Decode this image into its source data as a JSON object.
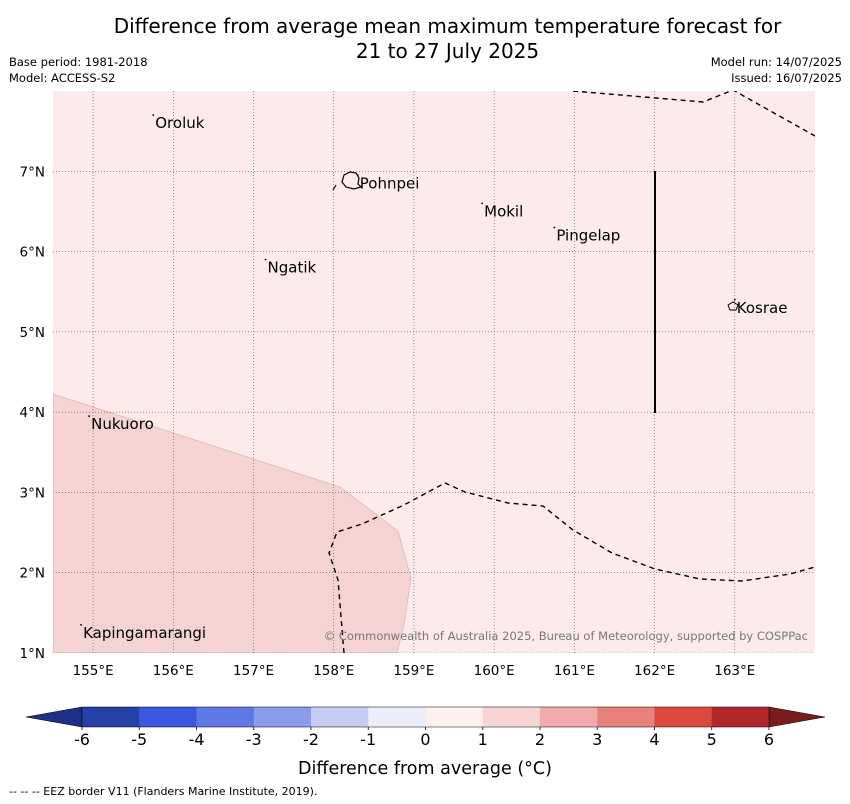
{
  "title": {
    "line1": "Difference from average mean maximum temperature forecast for",
    "line2": "21 to 27 July 2025"
  },
  "meta": {
    "base_period": "Base period: 1981-2018",
    "model": "Model: ACCESS-S2",
    "model_run": "Model run: 14/07/2025",
    "issued": "Issued: 16/07/2025"
  },
  "map": {
    "lon_range": [
      154.5,
      164.0
    ],
    "lat_range": [
      1.0,
      8.0
    ],
    "lon_ticks": [
      155,
      156,
      157,
      158,
      159,
      160,
      161,
      162,
      163
    ],
    "lon_labels": [
      "155°E",
      "156°E",
      "157°E",
      "158°E",
      "159°E",
      "160°E",
      "161°E",
      "162°E",
      "163°E"
    ],
    "lat_ticks": [
      1,
      2,
      3,
      4,
      5,
      6,
      7
    ],
    "lat_labels": [
      "1°N",
      "2°N",
      "3°N",
      "4°N",
      "5°N",
      "6°N",
      "7°N"
    ],
    "background_color": "#fcebea",
    "anomaly_region_color": "#f5d3d3",
    "places": [
      {
        "name": "Oroluk",
        "lon": 155.75,
        "lat": 7.6
      },
      {
        "name": "Pohnpei",
        "lon": 158.3,
        "lat": 6.85
      },
      {
        "name": "Mokil",
        "lon": 159.85,
        "lat": 6.5
      },
      {
        "name": "Pingelap",
        "lon": 160.75,
        "lat": 6.2
      },
      {
        "name": "Ngatik",
        "lon": 157.15,
        "lat": 5.8
      },
      {
        "name": "Kosrae",
        "lon": 163.0,
        "lat": 5.3
      },
      {
        "name": "Nukuoro",
        "lon": 154.95,
        "lat": 3.85
      },
      {
        "name": "Kapingamarangi",
        "lon": 154.85,
        "lat": 1.25
      }
    ],
    "copyright": "© Commonwealth of Australia 2025, Bureau of Meteorology, supported by COSPPac"
  },
  "colorbar": {
    "labels": [
      "-6",
      "-5",
      "-4",
      "-3",
      "-2",
      "-1",
      "0",
      "1",
      "2",
      "3",
      "4",
      "5",
      "6"
    ],
    "colors": [
      "#2540a8",
      "#3a58e0",
      "#5e78e6",
      "#8a9cec",
      "#c4cbf4",
      "#ebedfb",
      "#fdf0ef",
      "#f7d3d2",
      "#f0acaa",
      "#e8817c",
      "#dc4a3d",
      "#b0282a"
    ],
    "under_color": "#1d2f86",
    "over_color": "#7b1c1c",
    "label": "Difference from average (°C)"
  },
  "legend": {
    "eez_note": "--  --  -- EEZ border V11 (Flanders Marine Institute, 2019)."
  }
}
